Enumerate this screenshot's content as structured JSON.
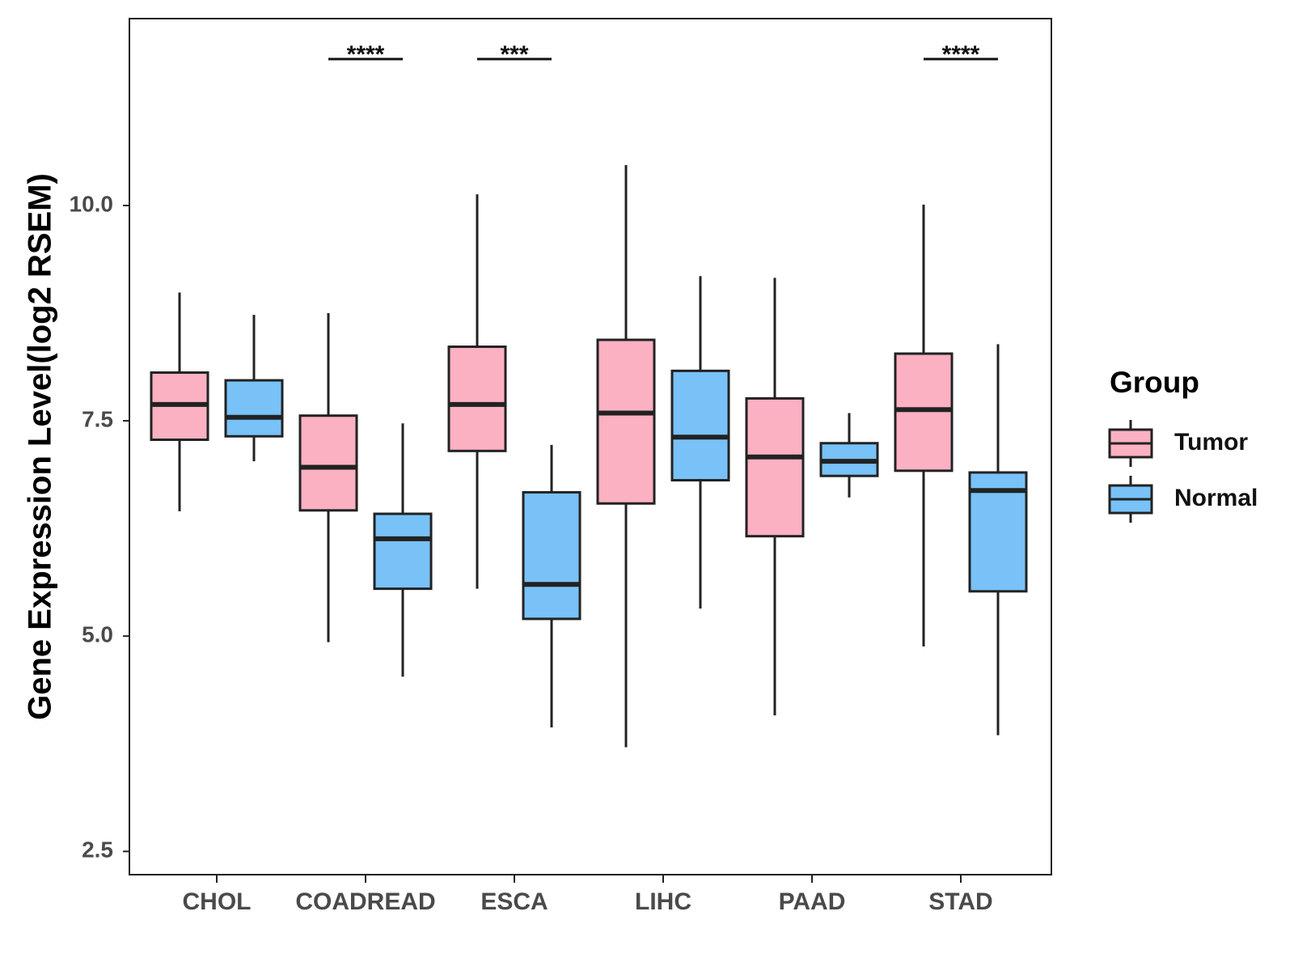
{
  "chart_data": {
    "type": "boxplot",
    "title": "",
    "xlabel": "",
    "ylabel": "Gene Expression Level(log2 RSEM)",
    "ylim": [
      2.23,
      12.17
    ],
    "yticks": [
      2.5,
      5.0,
      7.5,
      10.0
    ],
    "ytick_labels": [
      "2.5",
      "5.0",
      "7.5",
      "10.0"
    ],
    "grid": false,
    "categories": [
      "CHOL",
      "COADREAD",
      "ESCA",
      "LIHC",
      "PAAD",
      "STAD"
    ],
    "legend": {
      "title": "Group",
      "position": "right",
      "entries": [
        "Tumor",
        "Normal"
      ]
    },
    "colors": {
      "Tumor": "#FBB1C2",
      "Normal": "#78C2F8",
      "stroke": "#222222"
    },
    "series": [
      {
        "name": "Tumor",
        "boxes": [
          {
            "min": 6.45,
            "q1": 7.28,
            "median": 7.69,
            "q3": 8.06,
            "max": 8.99
          },
          {
            "min": 4.93,
            "q1": 6.46,
            "median": 6.96,
            "q3": 7.56,
            "max": 8.75
          },
          {
            "min": 5.55,
            "q1": 7.15,
            "median": 7.69,
            "q3": 8.36,
            "max": 10.13
          },
          {
            "min": 3.71,
            "q1": 6.54,
            "median": 7.59,
            "q3": 8.44,
            "max": 10.47
          },
          {
            "min": 4.08,
            "q1": 6.16,
            "median": 7.08,
            "q3": 7.76,
            "max": 9.16
          },
          {
            "min": 4.88,
            "q1": 6.92,
            "median": 7.63,
            "q3": 8.28,
            "max": 10.01
          }
        ]
      },
      {
        "name": "Normal",
        "boxes": [
          {
            "min": 7.03,
            "q1": 7.32,
            "median": 7.54,
            "q3": 7.97,
            "max": 8.73
          },
          {
            "min": 4.53,
            "q1": 5.55,
            "median": 6.13,
            "q3": 6.42,
            "max": 7.47
          },
          {
            "min": 3.94,
            "q1": 5.2,
            "median": 5.6,
            "q3": 6.67,
            "max": 7.22
          },
          {
            "min": 5.32,
            "q1": 6.81,
            "median": 7.31,
            "q3": 8.08,
            "max": 9.18
          },
          {
            "min": 6.61,
            "q1": 6.86,
            "median": 7.03,
            "q3": 7.24,
            "max": 7.59
          },
          {
            "min": 3.85,
            "q1": 5.52,
            "median": 6.69,
            "q3": 6.9,
            "max": 8.39
          }
        ]
      }
    ],
    "annotations": [
      {
        "category": "COADREAD",
        "label": "****",
        "y": 11.7
      },
      {
        "category": "ESCA",
        "label": "***",
        "y": 11.7
      },
      {
        "category": "STAD",
        "label": "****",
        "y": 11.7
      }
    ]
  }
}
